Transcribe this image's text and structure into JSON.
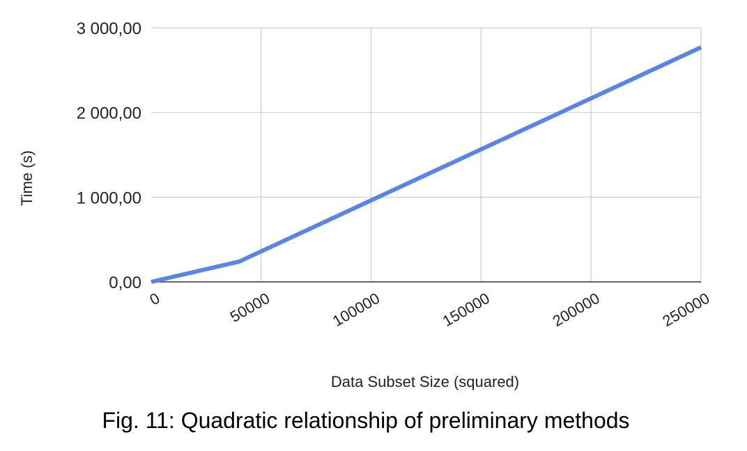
{
  "chart_data": {
    "type": "line",
    "title": "",
    "xlabel": "Data Subset Size (squared)",
    "ylabel": "Time (s)",
    "xlim": [
      0,
      250000
    ],
    "ylim": [
      0,
      3000
    ],
    "x_ticks": [
      0,
      50000,
      100000,
      150000,
      200000,
      250000
    ],
    "x_tick_labels": [
      "0",
      "50000",
      "100000",
      "150000",
      "200000",
      "250000"
    ],
    "y_ticks": [
      0,
      1000,
      2000,
      3000
    ],
    "y_tick_labels": [
      "0,00",
      "1 000,00",
      "2 000,00",
      "3 000,00"
    ],
    "grid": true,
    "legend": "none",
    "series": [
      {
        "color": "#5b84e8",
        "points": [
          {
            "x": 0,
            "y": 0
          },
          {
            "x": 40000,
            "y": 240
          },
          {
            "x": 250000,
            "y": 2770
          }
        ]
      }
    ]
  },
  "caption": "Fig. 11: Quadratic relationship of preliminary methods"
}
